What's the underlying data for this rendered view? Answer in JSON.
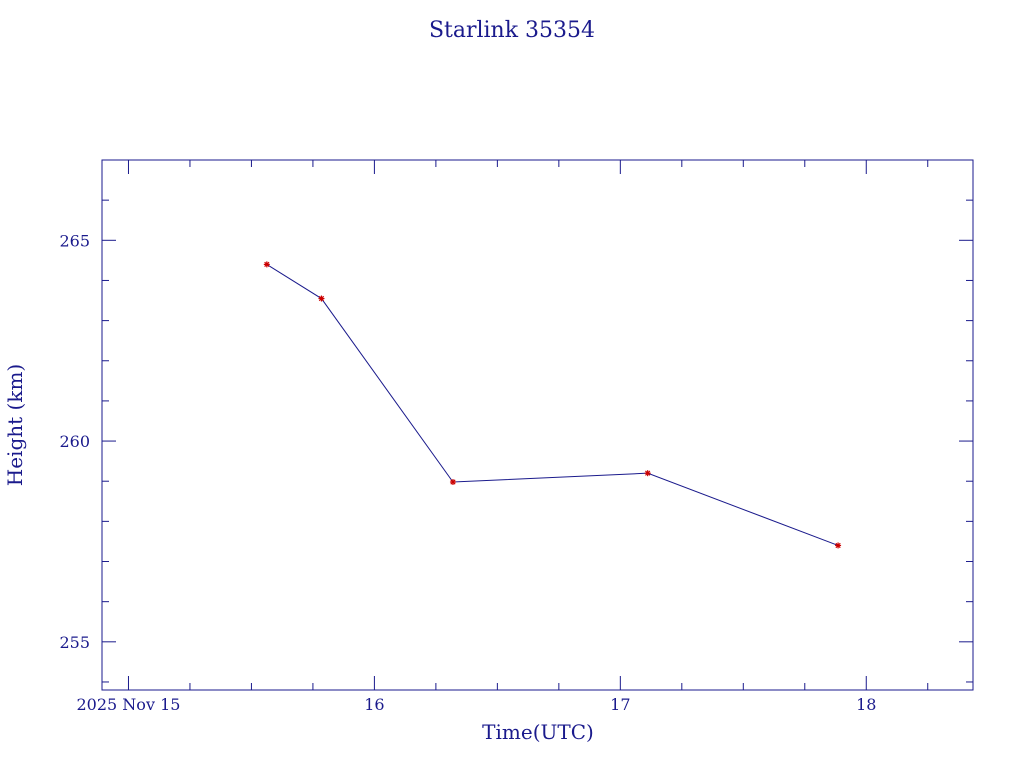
{
  "chart_data": {
    "type": "line",
    "title": "Starlink 35354",
    "xlabel": "Time(UTC)",
    "ylabel": "Height (km)",
    "x_type": "date",
    "x_tick_labels": [
      {
        "value": "2025-11-15T00:00",
        "label": "2025 Nov 15"
      },
      {
        "value": "2025-11-16T00:00",
        "label": "16"
      },
      {
        "value": "2025-11-17T00:00",
        "label": "17"
      },
      {
        "value": "2025-11-18T00:00",
        "label": "18"
      }
    ],
    "y_tick_labels": [
      {
        "value": 255,
        "label": "255"
      },
      {
        "value": 260,
        "label": "260"
      },
      {
        "value": 265,
        "label": "265"
      }
    ],
    "xlim": [
      "2025-11-14T21:25",
      "2025-11-18T10:25"
    ],
    "ylim": [
      253.8,
      267
    ],
    "grid": false,
    "series": [
      {
        "x": [
          "2025-11-15T13:30",
          "2025-11-15T18:50",
          "2025-11-16T07:40",
          "2025-11-17T02:40",
          "2025-11-17T21:15"
        ],
        "y": [
          264.4,
          263.55,
          258.98,
          259.2,
          257.4
        ]
      }
    ],
    "colors": {
      "axis": "#1a1a8c",
      "line": "#1a1a8c",
      "marker": "#cc0000"
    }
  }
}
